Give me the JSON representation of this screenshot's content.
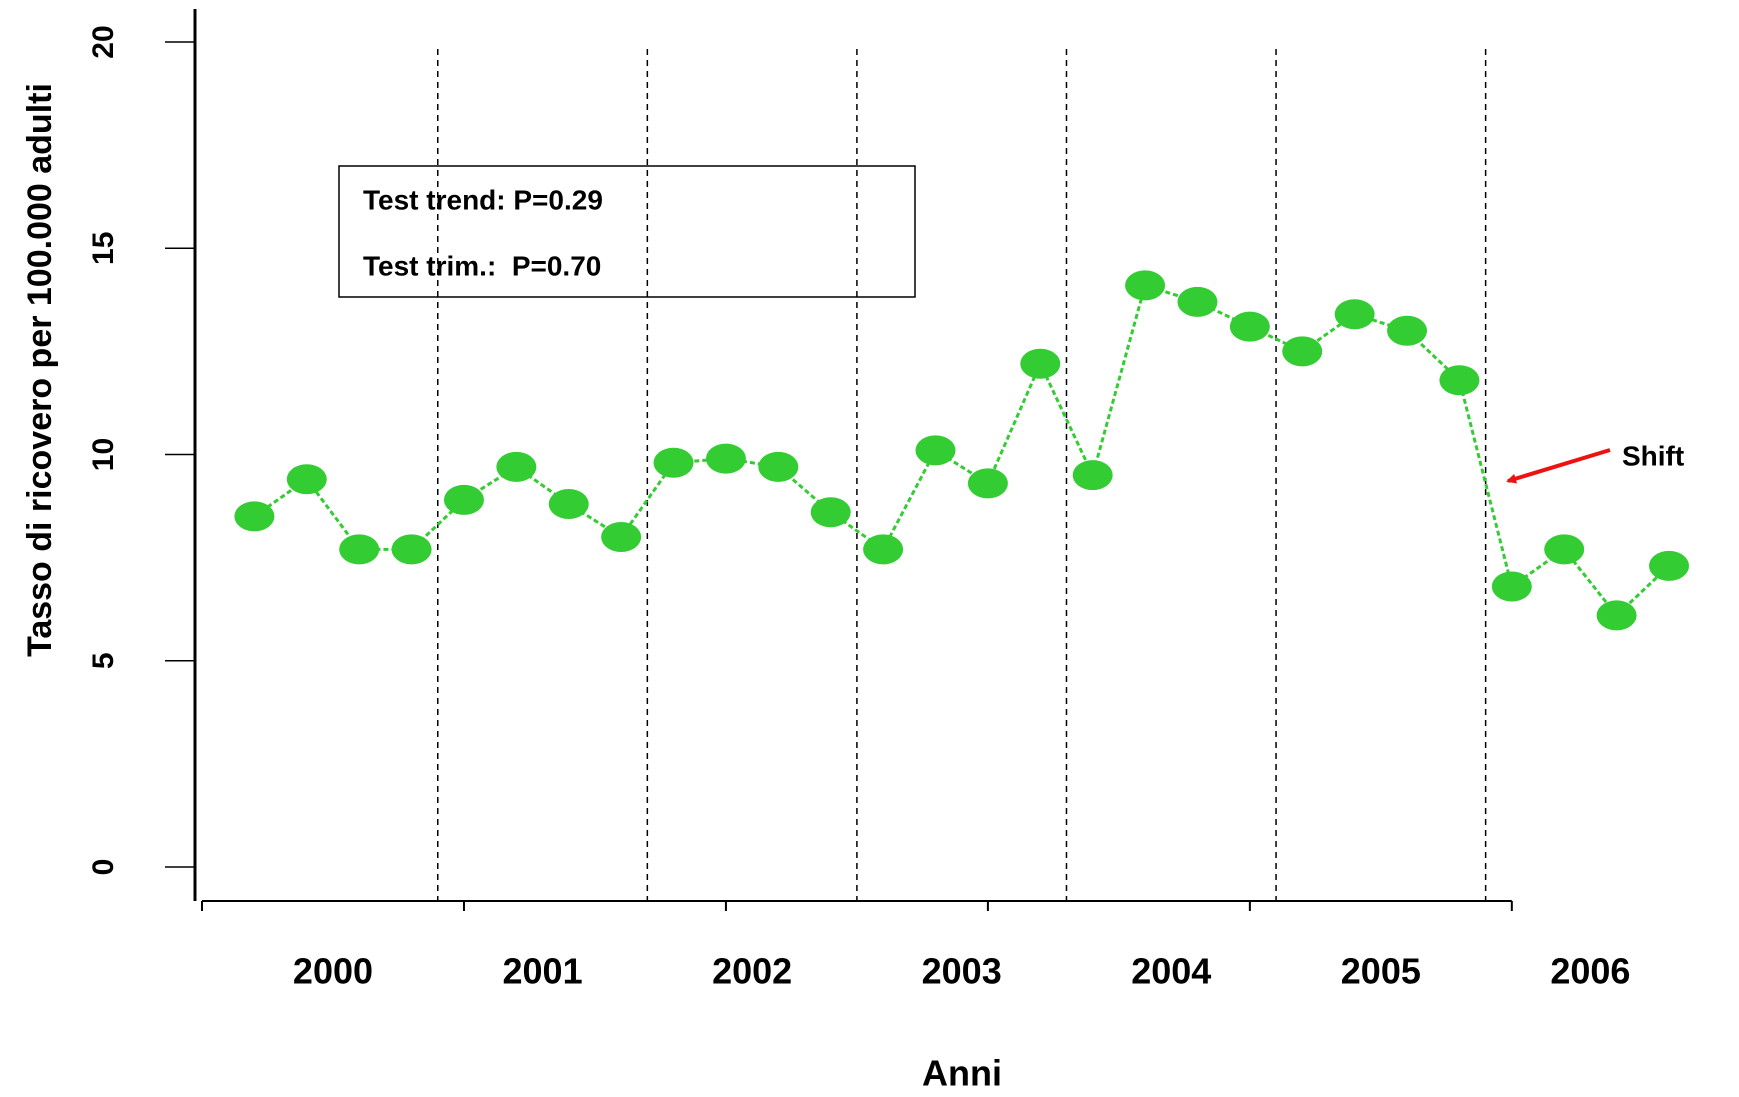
{
  "chart_data": {
    "type": "line",
    "x_label": "Anni",
    "y_label": "Tasso di ricovero per 100.000 adulti",
    "categories": [
      "2000",
      "2001",
      "2002",
      "2003",
      "2004",
      "2005",
      "2006"
    ],
    "x": [
      1,
      2,
      3,
      4,
      5,
      6,
      7,
      8,
      9,
      10,
      11,
      12,
      13,
      14,
      15,
      16,
      17,
      18,
      19,
      20,
      21,
      22,
      23,
      24,
      25,
      26,
      27,
      28
    ],
    "series": [
      {
        "color": "#33cc33",
        "values": [
          8.5,
          9.4,
          7.7,
          7.7,
          8.9,
          9.7,
          8.8,
          8.0,
          9.8,
          9.9,
          9.7,
          8.6,
          7.7,
          10.1,
          9.3,
          12.2,
          9.5,
          14.1,
          13.7,
          13.1,
          12.5,
          13.4,
          13.0,
          11.8,
          6.8,
          7.7,
          6.1,
          7.3
        ]
      }
    ],
    "xlim": [
      0,
      28
    ],
    "xticks": [
      0,
      5,
      10,
      15,
      20,
      25
    ],
    "ylim": [
      0,
      20
    ],
    "yticks": [
      0,
      5,
      10,
      15,
      20
    ],
    "year_separators": [
      4.5,
      8.5,
      12.5,
      16.5,
      20.5,
      24.5
    ],
    "box_lines": [
      "Test trend: P=0.29",
      "Test trim.:  P=0.70"
    ],
    "annotation": "Shift"
  }
}
